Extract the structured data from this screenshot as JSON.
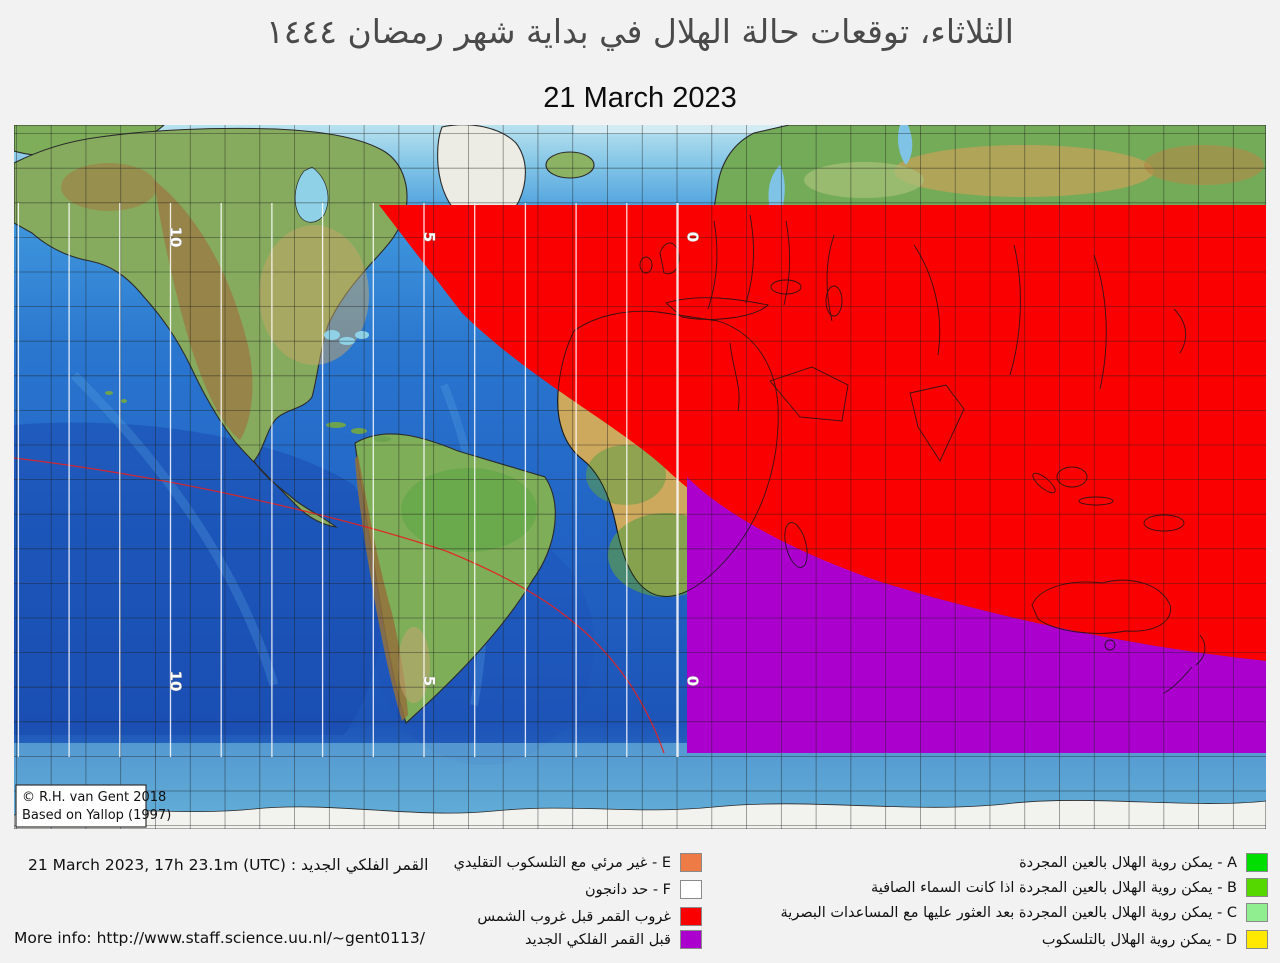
{
  "header": {
    "title_ar": "الثلاثاء، توقعات حالة الهلال في بداية شهر رمضان ١٤٤٤",
    "date": "21 March 2023"
  },
  "map": {
    "copyright_line1": "© R.H. van Gent 2018",
    "copyright_line2": "Based on Yallop (1997)",
    "contour_labels": [
      {
        "value": "10"
      },
      {
        "value": "5"
      },
      {
        "value": "0"
      }
    ],
    "zone_colors": {
      "moonset_before_sunset": "#fb0000",
      "before_new_moon": "#ab00cd"
    }
  },
  "footer": {
    "new_moon": {
      "label_ar": "القمر الفلكي الجديد",
      "separator": " : ",
      "datetime": "21 March 2023, 17h 23.1m (UTC)"
    },
    "more_info": {
      "prefix": "More info: ",
      "url": "http://www.staff.science.uu.nl/~gent0113/"
    },
    "legend_middle": [
      {
        "label": "E - غير مرئي مع التلسكوب التقليدي",
        "color": "#ee7a45"
      },
      {
        "label": "F - حد دانجون",
        "color": "#ffffff"
      },
      {
        "label": "غروب القمر قبل غروب الشمس",
        "color": "#fb0000"
      },
      {
        "label": "قبل القمر الفلكي الجديد",
        "color": "#ab00cd"
      }
    ],
    "legend_right": [
      {
        "label": "A - يمكن روية الهلال بالعين المجردة",
        "color": "#00dd00"
      },
      {
        "label": "B - يمكن روية الهلال بالعين المجردة اذا كانت السماء الصافية",
        "color": "#55d800"
      },
      {
        "label": "C - يمكن روية الهلال بالعين المجردة بعد العثور عليها مع المساعدات البصرية",
        "color": "#90ee90"
      },
      {
        "label": "D - يمكن روية الهلال بالتلسكوب",
        "color": "#ffe900"
      }
    ]
  }
}
